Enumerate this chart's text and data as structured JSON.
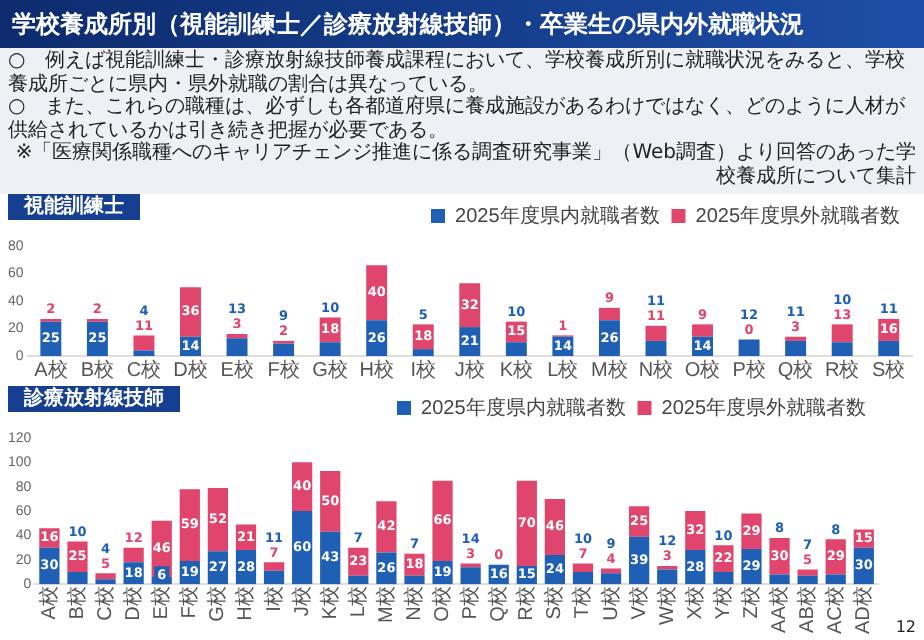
{
  "chart_data": [
    {
      "type": "other",
      "title": "学校養成所別（視能訓練士／診療放射線技師）・卒業生の県内外就職状況",
      "annotations": [
        "○　例えば視能訓練士・診療放射線技師養成課程において、学校養成所別に就職状況をみると、学校養成所ごとに県内・県外就職の割合は異なっている。",
        "○　また、これらの職種は、必ずしも各都道府県に養成施設があるわけではなく、どのように人材が供給されているかは引き続き把握が必要である。",
        "※「医療関係職種へのキャリアチェンジ推進に係る調査研究事業」（Web調査）より回答のあった学校養成所について集計",
        "12"
      ]
    },
    {
      "type": "bar",
      "title": "視能訓練士",
      "stacked": true,
      "legend": "top right",
      "grid": false,
      "data_labels": true,
      "ylim": [
        0,
        80
      ],
      "yticks": [
        0,
        20,
        40,
        60,
        80
      ],
      "categories": [
        "A校",
        "B校",
        "C校",
        "D校",
        "E校",
        "F校",
        "G校",
        "H校",
        "I校",
        "J校",
        "K校",
        "L校",
        "M校",
        "N校",
        "O校",
        "P校",
        "Q校",
        "R校",
        "S校"
      ],
      "series": [
        {
          "name": "2025年度県内就職者数",
          "color": "#1f5fb4",
          "values": [
            25,
            25,
            4,
            14,
            13,
            9,
            10,
            26,
            5,
            21,
            10,
            14,
            26,
            11,
            14,
            12,
            11,
            10,
            11
          ]
        },
        {
          "name": "2025年度県外就職者数",
          "color": "#e0456e",
          "values": [
            2,
            2,
            11,
            36,
            3,
            2,
            18,
            40,
            18,
            32,
            15,
            1,
            9,
            11,
            9,
            0,
            3,
            13,
            16
          ]
        }
      ]
    },
    {
      "type": "bar",
      "title": "診療放射線技師",
      "stacked": true,
      "legend": "top right",
      "grid": false,
      "data_labels": true,
      "ylim": [
        0,
        120
      ],
      "yticks": [
        0,
        20,
        40,
        60,
        80,
        100,
        120
      ],
      "categories": [
        "A校",
        "B校",
        "C校",
        "D校",
        "E校",
        "F校",
        "G校",
        "H校",
        "I校",
        "J校",
        "K校",
        "L校",
        "M校",
        "N校",
        "O校",
        "P校",
        "Q校",
        "R校",
        "S校",
        "T校",
        "U校",
        "V校",
        "W校",
        "X校",
        "Y校",
        "Z校",
        "AA校",
        "AB校",
        "AC校",
        "AD校"
      ],
      "series": [
        {
          "name": "2025年度県内就職者数",
          "color": "#1f5fb4",
          "values": [
            30,
            10,
            4,
            18,
            6,
            19,
            27,
            28,
            11,
            60,
            43,
            7,
            26,
            7,
            19,
            14,
            16,
            15,
            24,
            10,
            9,
            39,
            12,
            28,
            10,
            29,
            8,
            7,
            8,
            30
          ]
        },
        {
          "name": "2025年度県外就職者数",
          "color": "#e0456e",
          "values": [
            16,
            25,
            5,
            12,
            46,
            59,
            52,
            21,
            7,
            40,
            50,
            23,
            42,
            18,
            66,
            3,
            0,
            70,
            46,
            7,
            4,
            25,
            3,
            32,
            22,
            29,
            30,
            5,
            29,
            15
          ]
        }
      ]
    }
  ]
}
